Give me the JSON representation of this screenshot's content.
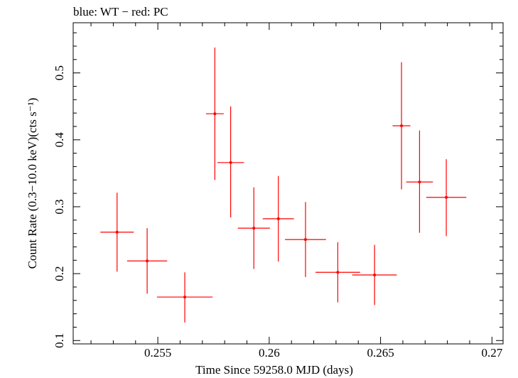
{
  "chart_data": {
    "type": "scatter",
    "title": "blue: WT − red: PC",
    "xlabel": "Time Since 59258.0 MJD (days)",
    "ylabel": "Count Rate (0.3−10.0 keV)(cts s⁻¹)",
    "xlim": [
      0.2512,
      0.2705
    ],
    "ylim": [
      0.095,
      0.575
    ],
    "x_ticks": [
      0.255,
      0.26,
      0.265,
      0.27
    ],
    "x_tick_labels": [
      "0.255",
      "0.26",
      "0.265",
      "0.27"
    ],
    "y_ticks": [
      0.1,
      0.2,
      0.3,
      0.4,
      0.5
    ],
    "y_tick_labels": [
      "0.1",
      "0.2",
      "0.3",
      "0.4",
      "0.5"
    ],
    "grid": false,
    "series": [
      {
        "name": "PC",
        "color": "#ff0000",
        "points": [
          {
            "x": 0.25317,
            "xerr": 0.00075,
            "y": 0.262,
            "ylo": 0.203,
            "yhi": 0.321
          },
          {
            "x": 0.25452,
            "xerr": 0.0009,
            "y": 0.219,
            "ylo": 0.17,
            "yhi": 0.268
          },
          {
            "x": 0.25621,
            "xerr": 0.00125,
            "y": 0.165,
            "ylo": 0.127,
            "yhi": 0.202
          },
          {
            "x": 0.25756,
            "xerr": 0.0004,
            "y": 0.439,
            "ylo": 0.34,
            "yhi": 0.538
          },
          {
            "x": 0.25827,
            "xerr": 0.0006,
            "y": 0.366,
            "ylo": 0.284,
            "yhi": 0.45
          },
          {
            "x": 0.25931,
            "xerr": 0.00072,
            "y": 0.268,
            "ylo": 0.207,
            "yhi": 0.329
          },
          {
            "x": 0.26041,
            "xerr": 0.0007,
            "y": 0.282,
            "ylo": 0.218,
            "yhi": 0.346
          },
          {
            "x": 0.26163,
            "xerr": 0.00092,
            "y": 0.251,
            "ylo": 0.195,
            "yhi": 0.307
          },
          {
            "x": 0.26308,
            "xerr": 0.001,
            "y": 0.202,
            "ylo": 0.157,
            "yhi": 0.247
          },
          {
            "x": 0.26473,
            "xerr": 0.001,
            "y": 0.198,
            "ylo": 0.153,
            "yhi": 0.243
          },
          {
            "x": 0.26594,
            "xerr": 0.0004,
            "y": 0.421,
            "ylo": 0.326,
            "yhi": 0.516
          },
          {
            "x": 0.26675,
            "xerr": 0.0006,
            "y": 0.337,
            "ylo": 0.261,
            "yhi": 0.414
          },
          {
            "x": 0.26795,
            "xerr": 0.0009,
            "y": 0.314,
            "ylo": 0.256,
            "yhi": 0.371
          }
        ]
      }
    ]
  }
}
